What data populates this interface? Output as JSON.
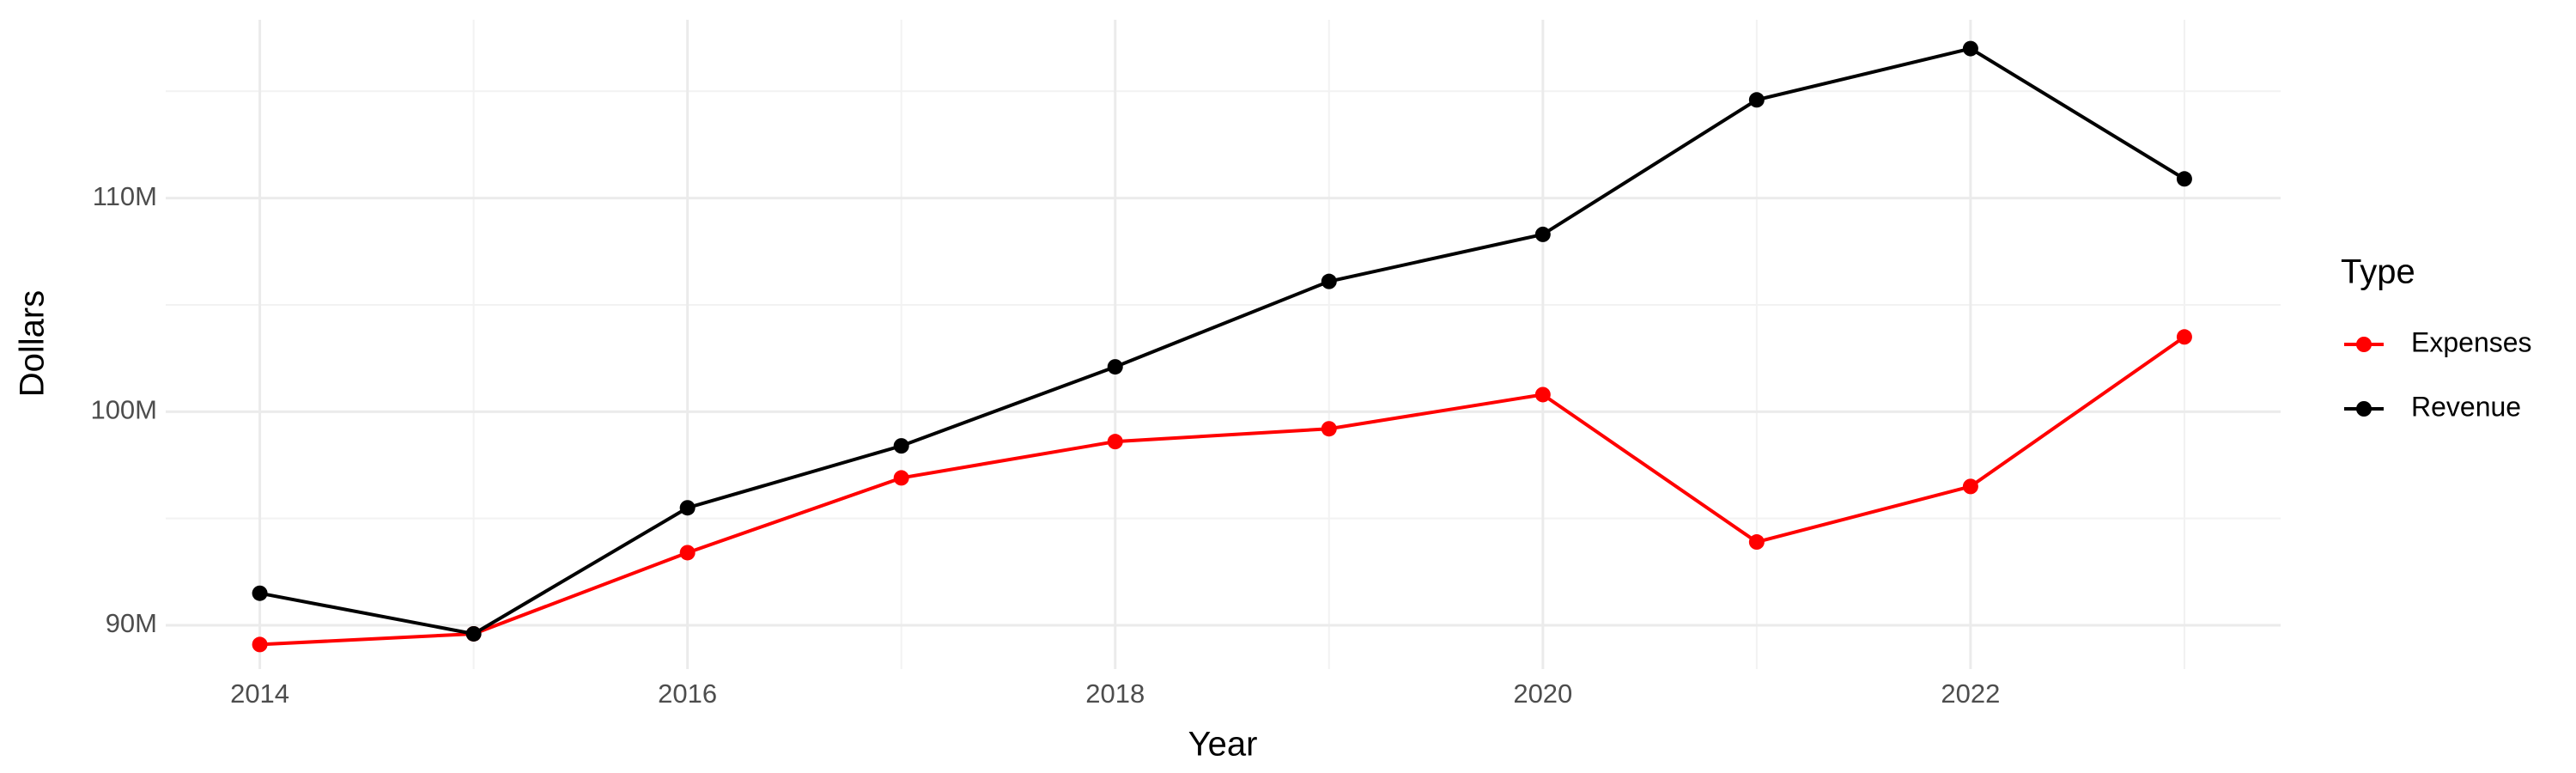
{
  "chart_data": {
    "type": "line",
    "x_label": "Year",
    "y_label": "Dollars",
    "x": [
      2014,
      2015,
      2016,
      2017,
      2018,
      2019,
      2020,
      2021,
      2022,
      2023
    ],
    "series": [
      {
        "name": "Expenses",
        "color": "#ff0000",
        "values": [
          89100000,
          89600000,
          93400000,
          96900000,
          98600000,
          99200000,
          100800000,
          93900000,
          96500000,
          103500000
        ]
      },
      {
        "name": "Revenue",
        "color": "#000000",
        "values": [
          91500000,
          89600000,
          95500000,
          98400000,
          102100000,
          106100000,
          108300000,
          114600000,
          117000000,
          110900000
        ]
      }
    ],
    "xlim": [
      2013.56,
      2023.45
    ],
    "xticks": [
      2014,
      2016,
      2018,
      2020,
      2022
    ],
    "ylim": [
      87950000,
      118350000
    ],
    "yticks": [
      {
        "value": 90000000,
        "label": "90M"
      },
      {
        "value": 100000000,
        "label": "100M"
      },
      {
        "value": 110000000,
        "label": "110M"
      }
    ],
    "grid": true,
    "legend": {
      "title": "Type",
      "position": "right"
    }
  }
}
